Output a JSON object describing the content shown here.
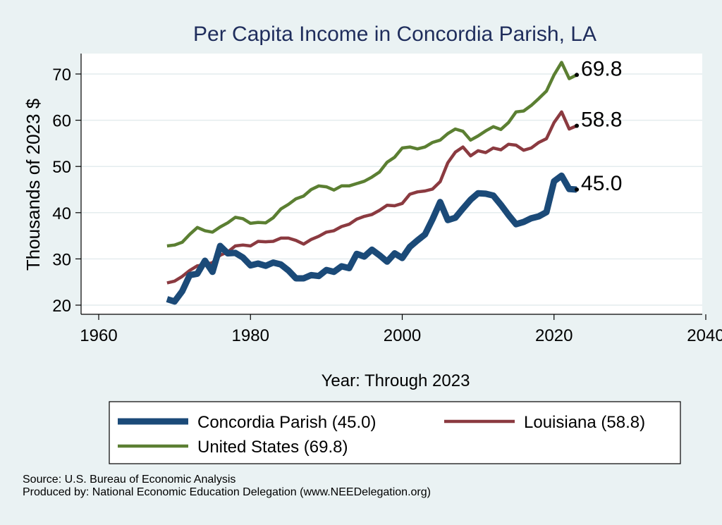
{
  "chart_data": {
    "type": "line",
    "title": "Per Capita Income in Concordia Parish, LA",
    "xlabel": "Year: Through 2023",
    "ylabel": "Thousands of 2023 $",
    "xlim": [
      1960,
      2040
    ],
    "ylim": [
      20,
      73
    ],
    "x_ticks": [
      1960,
      1980,
      2000,
      2020,
      2040
    ],
    "y_ticks": [
      20,
      30,
      40,
      50,
      60,
      70
    ],
    "grid": true,
    "legend_position": "bottom",
    "series": [
      {
        "name": "Concordia Parish",
        "legend_label": "Concordia Parish (45.0)",
        "end_label": "45.0",
        "color": "#1b4a78",
        "points": [
          [
            1969,
            21.3
          ],
          [
            1970,
            20.8
          ],
          [
            1971,
            23.0
          ],
          [
            1972,
            26.5
          ],
          [
            1973,
            26.8
          ],
          [
            1974,
            29.6
          ],
          [
            1975,
            27.2
          ],
          [
            1976,
            32.8
          ],
          [
            1977,
            31.2
          ],
          [
            1978,
            31.3
          ],
          [
            1979,
            30.3
          ],
          [
            1980,
            28.6
          ],
          [
            1981,
            29.0
          ],
          [
            1982,
            28.5
          ],
          [
            1983,
            29.2
          ],
          [
            1984,
            28.8
          ],
          [
            1985,
            27.5
          ],
          [
            1986,
            25.8
          ],
          [
            1987,
            25.8
          ],
          [
            1988,
            26.5
          ],
          [
            1989,
            26.3
          ],
          [
            1990,
            27.6
          ],
          [
            1991,
            27.2
          ],
          [
            1992,
            28.4
          ],
          [
            1993,
            28.0
          ],
          [
            1994,
            31.1
          ],
          [
            1995,
            30.5
          ],
          [
            1996,
            32.0
          ],
          [
            1997,
            30.8
          ],
          [
            1998,
            29.4
          ],
          [
            1999,
            31.2
          ],
          [
            2000,
            30.2
          ],
          [
            2001,
            32.6
          ],
          [
            2002,
            34.0
          ],
          [
            2003,
            35.3
          ],
          [
            2004,
            38.6
          ],
          [
            2005,
            42.3
          ],
          [
            2006,
            38.4
          ],
          [
            2007,
            38.9
          ],
          [
            2008,
            40.9
          ],
          [
            2009,
            42.8
          ],
          [
            2010,
            44.2
          ],
          [
            2011,
            44.1
          ],
          [
            2012,
            43.7
          ],
          [
            2013,
            41.7
          ],
          [
            2014,
            39.5
          ],
          [
            2015,
            37.5
          ],
          [
            2016,
            38.0
          ],
          [
            2017,
            38.8
          ],
          [
            2018,
            39.2
          ],
          [
            2019,
            40.1
          ],
          [
            2020,
            46.8
          ],
          [
            2021,
            48.0
          ],
          [
            2022,
            45.1
          ],
          [
            2023,
            45.0
          ]
        ]
      },
      {
        "name": "Louisiana",
        "legend_label": "Louisiana (58.8)",
        "end_label": "58.8",
        "color": "#8b3a40",
        "points": [
          [
            1969,
            24.8
          ],
          [
            1970,
            25.2
          ],
          [
            1971,
            26.2
          ],
          [
            1972,
            27.5
          ],
          [
            1973,
            28.5
          ],
          [
            1974,
            28.7
          ],
          [
            1975,
            29.2
          ],
          [
            1976,
            30.8
          ],
          [
            1977,
            31.5
          ],
          [
            1978,
            32.8
          ],
          [
            1979,
            33.0
          ],
          [
            1980,
            32.8
          ],
          [
            1981,
            33.8
          ],
          [
            1982,
            33.7
          ],
          [
            1983,
            33.8
          ],
          [
            1984,
            34.5
          ],
          [
            1985,
            34.5
          ],
          [
            1986,
            34.0
          ],
          [
            1987,
            33.2
          ],
          [
            1988,
            34.2
          ],
          [
            1989,
            34.9
          ],
          [
            1990,
            35.8
          ],
          [
            1991,
            36.1
          ],
          [
            1992,
            37.0
          ],
          [
            1993,
            37.5
          ],
          [
            1994,
            38.6
          ],
          [
            1995,
            39.2
          ],
          [
            1996,
            39.6
          ],
          [
            1997,
            40.5
          ],
          [
            1998,
            41.6
          ],
          [
            1999,
            41.5
          ],
          [
            2000,
            42.0
          ],
          [
            2001,
            44.0
          ],
          [
            2002,
            44.5
          ],
          [
            2003,
            44.7
          ],
          [
            2004,
            45.1
          ],
          [
            2005,
            46.7
          ],
          [
            2006,
            50.8
          ],
          [
            2007,
            53.1
          ],
          [
            2008,
            54.2
          ],
          [
            2009,
            52.3
          ],
          [
            2010,
            53.4
          ],
          [
            2011,
            53.0
          ],
          [
            2012,
            54.0
          ],
          [
            2013,
            53.6
          ],
          [
            2014,
            54.8
          ],
          [
            2015,
            54.6
          ],
          [
            2016,
            53.5
          ],
          [
            2017,
            54.0
          ],
          [
            2018,
            55.2
          ],
          [
            2019,
            56.0
          ],
          [
            2020,
            59.5
          ],
          [
            2021,
            61.8
          ],
          [
            2022,
            58.1
          ],
          [
            2023,
            58.8
          ]
        ]
      },
      {
        "name": "United States",
        "legend_label": "United States (69.8)",
        "end_label": "69.8",
        "color": "#5b7f32",
        "points": [
          [
            1969,
            32.8
          ],
          [
            1970,
            33.0
          ],
          [
            1971,
            33.6
          ],
          [
            1972,
            35.3
          ],
          [
            1973,
            36.8
          ],
          [
            1974,
            36.1
          ],
          [
            1975,
            35.8
          ],
          [
            1976,
            36.9
          ],
          [
            1977,
            37.8
          ],
          [
            1978,
            39.0
          ],
          [
            1979,
            38.7
          ],
          [
            1980,
            37.7
          ],
          [
            1981,
            37.9
          ],
          [
            1982,
            37.8
          ],
          [
            1983,
            38.9
          ],
          [
            1984,
            40.8
          ],
          [
            1985,
            41.8
          ],
          [
            1986,
            43.0
          ],
          [
            1987,
            43.6
          ],
          [
            1988,
            45.0
          ],
          [
            1989,
            45.8
          ],
          [
            1990,
            45.6
          ],
          [
            1991,
            44.9
          ],
          [
            1992,
            45.8
          ],
          [
            1993,
            45.8
          ],
          [
            1994,
            46.3
          ],
          [
            1995,
            46.8
          ],
          [
            1996,
            47.7
          ],
          [
            1997,
            48.8
          ],
          [
            1998,
            50.9
          ],
          [
            1999,
            52.0
          ],
          [
            2000,
            54.0
          ],
          [
            2001,
            54.2
          ],
          [
            2002,
            53.8
          ],
          [
            2003,
            54.2
          ],
          [
            2004,
            55.2
          ],
          [
            2005,
            55.7
          ],
          [
            2006,
            57.1
          ],
          [
            2007,
            58.1
          ],
          [
            2008,
            57.6
          ],
          [
            2009,
            55.7
          ],
          [
            2010,
            56.6
          ],
          [
            2011,
            57.7
          ],
          [
            2012,
            58.6
          ],
          [
            2013,
            58.0
          ],
          [
            2014,
            59.5
          ],
          [
            2015,
            61.8
          ],
          [
            2016,
            62.0
          ],
          [
            2017,
            63.2
          ],
          [
            2018,
            64.7
          ],
          [
            2019,
            66.3
          ],
          [
            2020,
            69.8
          ],
          [
            2021,
            72.5
          ],
          [
            2022,
            69.0
          ],
          [
            2023,
            69.8
          ]
        ]
      }
    ]
  },
  "footer": {
    "source": "Source: U.S. Bureau of Economic Analysis",
    "produced_by": "Produced by: National Economic Education Delegation (www.NEEDelegation.org)"
  }
}
